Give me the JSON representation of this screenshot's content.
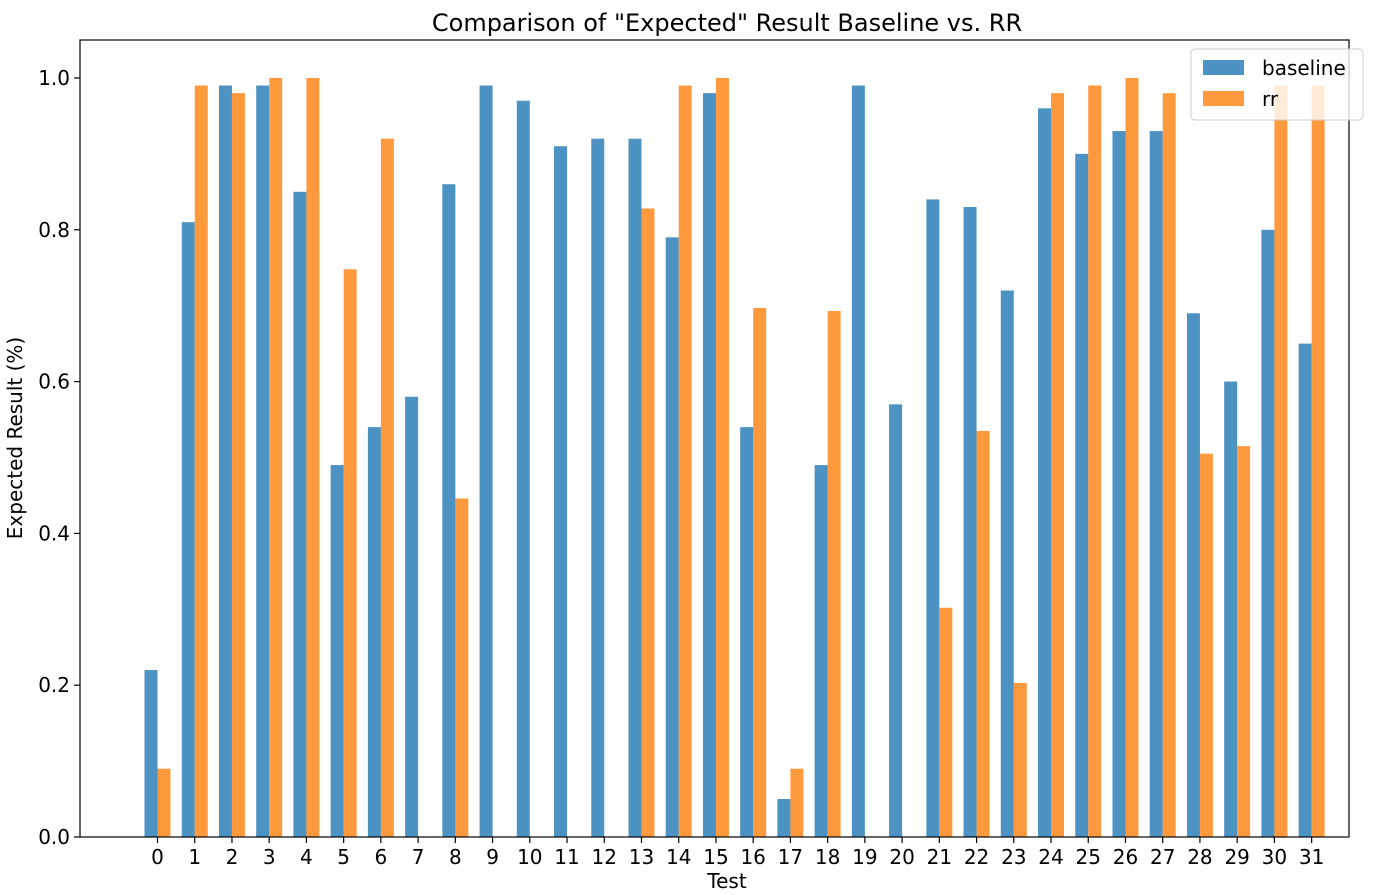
{
  "chart_data": {
    "type": "bar",
    "title": "Comparison of \"Expected\" Result Baseline vs. RR",
    "xlabel": "Test",
    "ylabel": "Expected Result (%)",
    "ylim": [
      0,
      1.05
    ],
    "yticks": [
      "0.0",
      "0.2",
      "0.4",
      "0.6",
      "0.8",
      "1.0"
    ],
    "categories": [
      "0",
      "1",
      "2",
      "3",
      "4",
      "5",
      "6",
      "7",
      "8",
      "9",
      "10",
      "11",
      "12",
      "13",
      "14",
      "15",
      "16",
      "17",
      "18",
      "19",
      "20",
      "21",
      "22",
      "23",
      "24",
      "25",
      "26",
      "27",
      "28",
      "29",
      "30",
      "31"
    ],
    "series": [
      {
        "name": "baseline",
        "color": "#1f77b4",
        "values": [
          0.22,
          0.81,
          0.99,
          0.99,
          0.85,
          0.49,
          0.54,
          0.58,
          0.86,
          0.99,
          0.97,
          0.91,
          0.92,
          0.92,
          0.79,
          0.98,
          0.54,
          0.05,
          0.49,
          0.99,
          0.57,
          0.84,
          0.83,
          0.72,
          0.96,
          0.9,
          0.93,
          0.93,
          0.69,
          0.6,
          0.8,
          0.65
        ]
      },
      {
        "name": "rr",
        "color": "#ff7f0e",
        "values": [
          0.09,
          0.99,
          0.98,
          1.0,
          1.0,
          0.748,
          0.92,
          0.0,
          0.446,
          0.0,
          0.0,
          0.0,
          0.0,
          0.828,
          0.99,
          1.0,
          0.697,
          0.09,
          0.693,
          0.0,
          0.0,
          0.302,
          0.535,
          0.203,
          0.98,
          0.99,
          1.0,
          0.98,
          0.505,
          0.515,
          0.99,
          0.99
        ]
      }
    ],
    "legend_position": "top-right",
    "grid": false
  }
}
